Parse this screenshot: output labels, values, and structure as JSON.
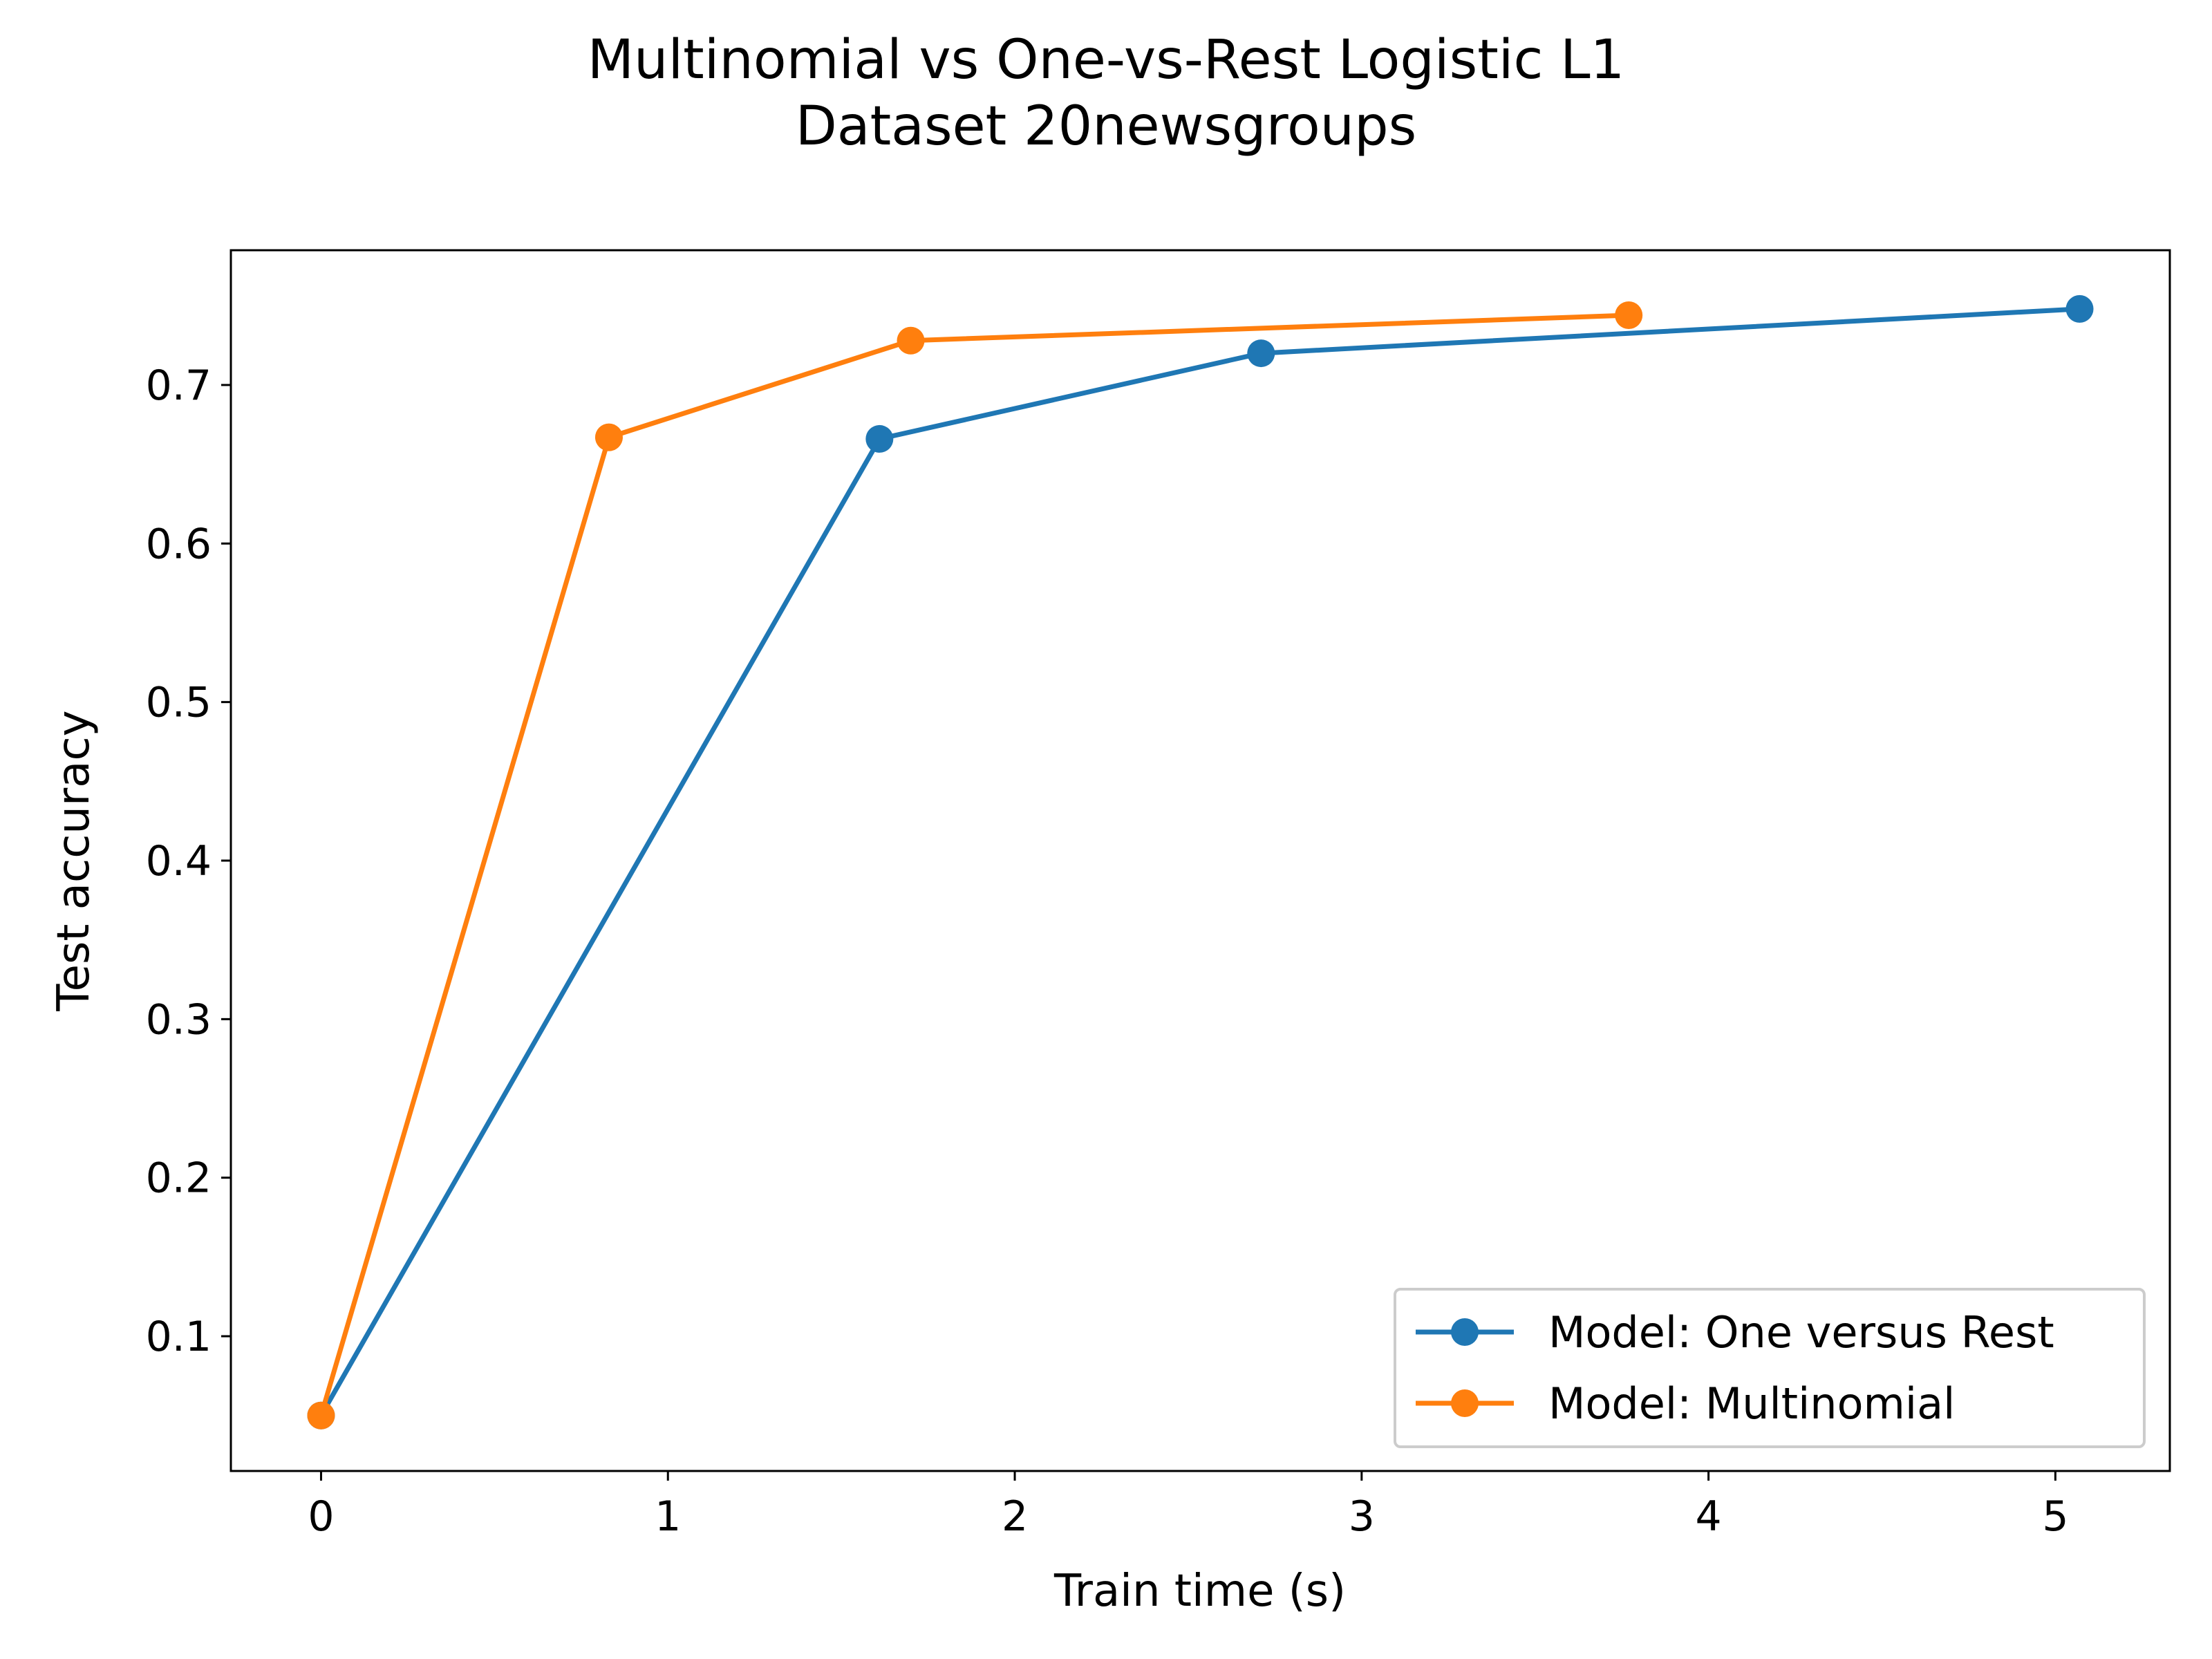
{
  "title_line1": "Multinomial vs One-vs-Rest Logistic L1",
  "title_line2": "Dataset 20newsgroups",
  "chart_data": {
    "type": "line",
    "title": "Multinomial vs One-vs-Rest Logistic L1\nDataset 20newsgroups",
    "xlabel": "Train time (s)",
    "ylabel": "Test accuracy",
    "xlim": [
      -0.26,
      5.33
    ],
    "ylim": [
      0.015,
      0.785
    ],
    "xticks": [
      0,
      1,
      2,
      3,
      4,
      5
    ],
    "yticks": [
      0.1,
      0.2,
      0.3,
      0.4,
      0.5,
      0.6,
      0.7
    ],
    "xtick_labels": [
      "0",
      "1",
      "2",
      "3",
      "4",
      "5"
    ],
    "ytick_labels": [
      "0.1",
      "0.2",
      "0.3",
      "0.4",
      "0.5",
      "0.6",
      "0.7"
    ],
    "grid": false,
    "legend_position": "lower-right",
    "series": [
      {
        "name": "Model: One versus Rest",
        "color": "#1f77b4",
        "marker": "circle",
        "x": [
          0,
          1.61,
          2.71,
          5.07
        ],
        "y": [
          0.05,
          0.666,
          0.72,
          0.748
        ]
      },
      {
        "name": "Model: Multinomial",
        "color": "#ff7f0e",
        "marker": "circle",
        "x": [
          0,
          0.83,
          1.7,
          3.77
        ],
        "y": [
          0.05,
          0.667,
          0.728,
          0.744
        ]
      }
    ]
  }
}
